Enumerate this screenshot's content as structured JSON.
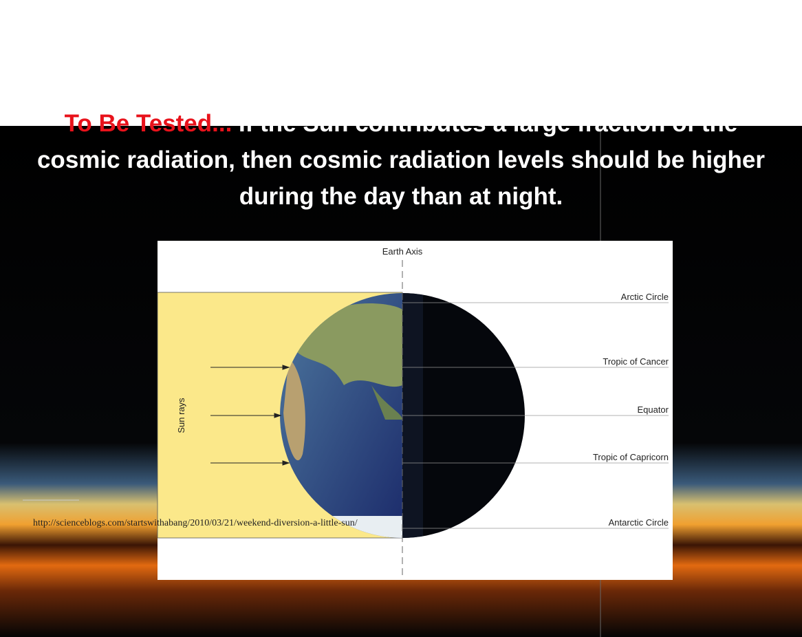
{
  "slide": {
    "title_highlight": "To Be Tested...",
    "title_rest": " If the Sun contributes a large fraction of the cosmic radiation, then cosmic radiation levels should be higher during the day than at night.",
    "source_url": "http://scienceblogs.com/startswithabang/2010/03/21/weekend-diversion-a-little-sun/"
  },
  "diagram": {
    "axis_label": "Earth Axis",
    "side_label": "Sun rays",
    "latitudes": [
      "Arctic Circle",
      "Tropic of Cancer",
      "Equator",
      "Tropic of Capricorn",
      "Antarctic Circle"
    ]
  }
}
